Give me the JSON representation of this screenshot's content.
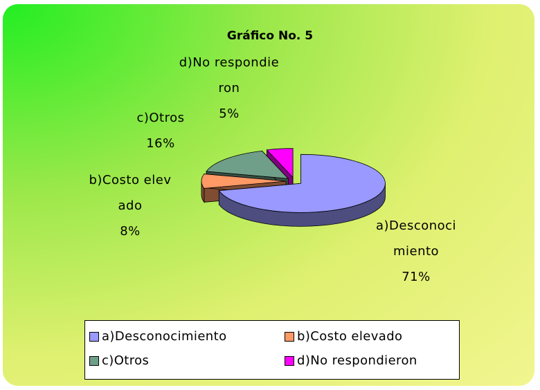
{
  "chart_data": {
    "type": "pie",
    "title": "Gráfico No. 5",
    "categories": [
      "a)Desconocimiento",
      "b)Costo elevado",
      "c)Otros",
      "d)No respondieron"
    ],
    "values": [
      71,
      8,
      16,
      5
    ],
    "value_labels": [
      "71%",
      "8%",
      "16%",
      "5%"
    ],
    "colors": [
      "#9999ff",
      "#ff9966",
      "#6f9f88",
      "#ff00ff"
    ],
    "legend": "bottom"
  }
}
